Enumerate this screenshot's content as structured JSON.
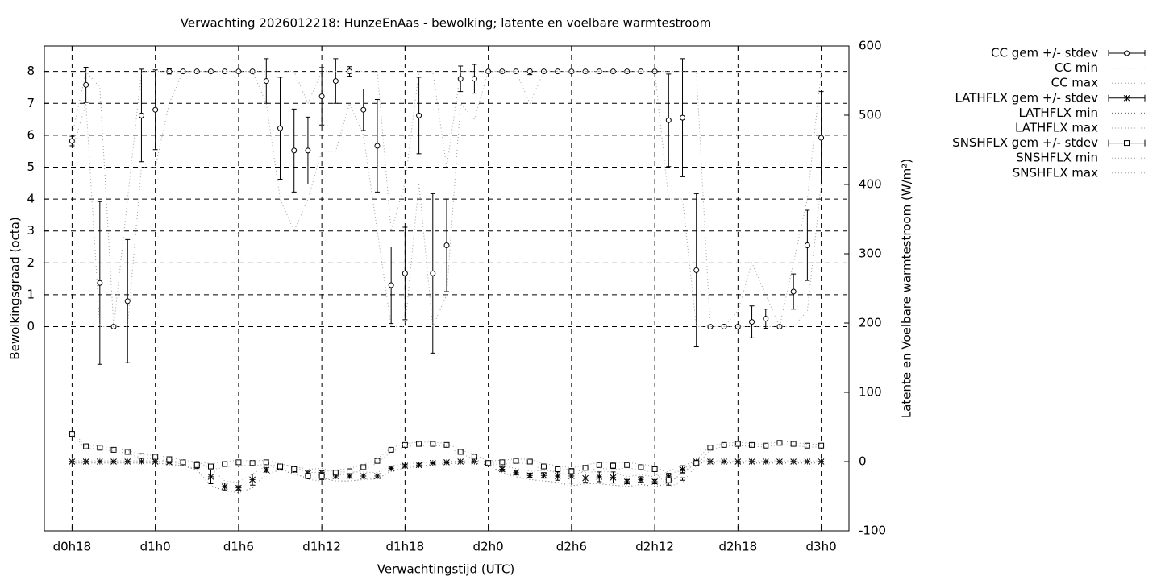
{
  "chart_data": {
    "type": "errorbar",
    "title": "Verwachting 2026012218: HunzeEnAas - bewolking; latente en voelbare warmtestroom",
    "xlabel": "Verwachtingstijd (UTC)",
    "ylabel": "Bewolkingsgraad (octa)",
    "y2label": "Latente en Voelbare warmtestroom (W/m²)",
    "grid": true,
    "legend": "outside-right",
    "x": [
      18,
      19,
      20,
      21,
      22,
      23,
      24,
      25,
      26,
      27,
      28,
      29,
      30,
      31,
      32,
      33,
      34,
      35,
      36,
      37,
      38,
      39,
      40,
      41,
      42,
      43,
      44,
      45,
      46,
      47,
      48,
      49,
      50,
      51,
      52,
      53,
      54,
      55,
      56,
      57,
      58,
      59,
      60,
      61,
      62,
      63,
      64,
      65,
      66,
      67,
      68,
      69,
      70,
      71,
      72
    ],
    "xlim": [
      16,
      74
    ],
    "xticks": [
      {
        "value": 18,
        "label": "d0h18"
      },
      {
        "value": 24,
        "label": "d1h0"
      },
      {
        "value": 30,
        "label": "d1h6"
      },
      {
        "value": 36,
        "label": "d1h12"
      },
      {
        "value": 42,
        "label": "d1h18"
      },
      {
        "value": 48,
        "label": "d2h0"
      },
      {
        "value": 54,
        "label": "d2h6"
      },
      {
        "value": 60,
        "label": "d2h12"
      },
      {
        "value": 66,
        "label": "d2h18"
      },
      {
        "value": 72,
        "label": "d3h0"
      }
    ],
    "ylim": [
      -6.4,
      8.8
    ],
    "yticks": [
      0,
      1,
      2,
      3,
      4,
      5,
      6,
      7,
      8
    ],
    "y2lim": [
      -100,
      600
    ],
    "y2ticks": [
      -100,
      0,
      100,
      200,
      300,
      400,
      500,
      600
    ],
    "series": [
      {
        "name": "CC gem +/- stdev",
        "style": "errorbar",
        "marker": "circle",
        "color": "#000000",
        "values": [
          5.82,
          7.58,
          1.37,
          0,
          0.8,
          6.62,
          6.8,
          8,
          8,
          8,
          8,
          8,
          8,
          8,
          7.7,
          6.22,
          5.52,
          5.52,
          7.22,
          7.7,
          8,
          6.8,
          5.67,
          1.3,
          1.67,
          6.62,
          1.67,
          2.55,
          7.77,
          7.77,
          8,
          8,
          8,
          8,
          8,
          8,
          8,
          8,
          8,
          8,
          8,
          8,
          8,
          6.47,
          6.55,
          1.77,
          0,
          0,
          0,
          0.15,
          0.25,
          0,
          1.1,
          2.55,
          5.92
        ],
        "errors": [
          0.15,
          0.55,
          2.55,
          0,
          1.93,
          1.45,
          1.25,
          0.08,
          0,
          0,
          0,
          0,
          0,
          0,
          0.7,
          1.6,
          1.3,
          1.05,
          0.9,
          0.7,
          0.15,
          0.65,
          1.45,
          1.2,
          1.45,
          1.2,
          2.5,
          1.45,
          0.4,
          0.45,
          0,
          0,
          0,
          0.1,
          0,
          0,
          0,
          0,
          0,
          0,
          0,
          0,
          0,
          1.45,
          1.85,
          2.4,
          0,
          0,
          0.05,
          0.5,
          0.3,
          0,
          0.55,
          1.1,
          1.45
        ]
      },
      {
        "name": "CC min",
        "style": "dotted",
        "color": "#a0a0a0",
        "values": [
          5.5,
          7,
          0,
          0,
          0,
          5,
          5,
          7,
          8,
          8,
          8,
          8,
          8,
          8,
          7,
          4,
          3,
          4,
          5.5,
          5.5,
          7,
          6,
          3,
          0,
          0,
          4.5,
          0,
          1,
          7,
          6.5,
          8,
          8,
          8,
          7,
          8,
          8,
          8,
          8,
          8,
          8,
          8,
          8,
          8,
          4,
          4,
          0,
          0,
          0,
          0,
          0,
          0,
          0,
          0,
          0.5,
          4.5
        ]
      },
      {
        "name": "CC max",
        "style": "dotted",
        "color": "#a0a0a0",
        "values": [
          6,
          8,
          7.5,
          0,
          4,
          8,
          8,
          8,
          8,
          8,
          8,
          8,
          8,
          8,
          8,
          8,
          8,
          7,
          8,
          8,
          8,
          8,
          8,
          3,
          4.5,
          8,
          8,
          5,
          8,
          8,
          8,
          8,
          8,
          8,
          8,
          8,
          8,
          8,
          8,
          8,
          8,
          8,
          8,
          8,
          8,
          8,
          0,
          0,
          0.5,
          2,
          1,
          0,
          2,
          4,
          8
        ]
      },
      {
        "name": "LATHFLX gem +/- stdev",
        "style": "errorbar",
        "marker": "star",
        "color": "#000000",
        "axis": "y2",
        "values": [
          0,
          0,
          0,
          0,
          0,
          0,
          0,
          -1,
          -2,
          -5,
          -22,
          -36,
          -38,
          -26,
          -12,
          -8,
          -12,
          -17,
          -16,
          -21,
          -21,
          -21,
          -21,
          -10,
          -6,
          -5,
          -2,
          -1,
          0,
          0,
          -2,
          -11,
          -16,
          -20,
          -20,
          -21,
          -21,
          -24,
          -22,
          -23,
          -29,
          -26,
          -29,
          -22,
          -11,
          0,
          0,
          0,
          0,
          0,
          0,
          0,
          0,
          0,
          0
        ],
        "errors": [
          0.5,
          0.5,
          0.5,
          0.5,
          0.5,
          0.5,
          0.5,
          1,
          2,
          3,
          10,
          5,
          3,
          8,
          3,
          3,
          3,
          3,
          3,
          3,
          3,
          3,
          3,
          2,
          2,
          2,
          1,
          1,
          0.5,
          0.5,
          1,
          3,
          3,
          3,
          4,
          6,
          10,
          6,
          7,
          8,
          3,
          4,
          3,
          5,
          5,
          0.5,
          0.5,
          0.5,
          0.5,
          0.5,
          0.5,
          0.5,
          0.5,
          0.5,
          0.5
        ]
      },
      {
        "name": "LATHFLX min",
        "style": "dotted",
        "color": "#606060",
        "axis": "y2",
        "values": [
          -2,
          -2,
          -2,
          -2,
          -2,
          -2,
          -2,
          -4,
          -6,
          -12,
          -35,
          -42,
          -45,
          -38,
          -18,
          -12,
          -18,
          -24,
          -24,
          -28,
          -28,
          -26,
          -25,
          -14,
          -9,
          -7,
          -4,
          -3,
          -2,
          -2,
          -5,
          -16,
          -22,
          -26,
          -28,
          -30,
          -35,
          -32,
          -32,
          -34,
          -36,
          -33,
          -36,
          -32,
          -16,
          -2,
          -2,
          -2,
          -2,
          -2,
          -2,
          -2,
          -2,
          -2,
          -2
        ]
      },
      {
        "name": "LATHFLX max",
        "style": "dotted",
        "color": "#a0a0a0",
        "axis": "y2",
        "values": [
          1,
          1,
          1,
          1,
          1,
          1,
          1,
          0,
          0,
          0,
          -10,
          -28,
          -30,
          -18,
          -6,
          -4,
          -7,
          -11,
          -10,
          -15,
          -15,
          -15,
          -16,
          -6,
          -3,
          -2,
          0,
          0,
          1,
          1,
          0,
          -6,
          -10,
          -14,
          -13,
          -13,
          -10,
          -16,
          -14,
          -15,
          -22,
          -19,
          -22,
          -14,
          -6,
          1,
          1,
          1,
          1,
          1,
          1,
          1,
          1,
          1,
          1
        ]
      },
      {
        "name": "SNSHFLX gem +/- stdev",
        "style": "errorbar",
        "marker": "square",
        "color": "#000000",
        "axis": "y2",
        "values": [
          40,
          22,
          20,
          17,
          14,
          8,
          7,
          3.5,
          -1,
          -5,
          -7,
          -3.5,
          -1,
          -2,
          -1,
          -7,
          -11,
          -21,
          -21,
          -16,
          -14,
          -8,
          1,
          17,
          24,
          25.5,
          25.5,
          24,
          14,
          7,
          -2,
          -1,
          1,
          0,
          -7,
          -11,
          -14,
          -9,
          -5,
          -6,
          -5,
          -8,
          -11,
          -27,
          -20,
          -2,
          20,
          24,
          25.5,
          24,
          23,
          27,
          25.5,
          23,
          23
        ],
        "errors": [
          1.5,
          1.5,
          1.5,
          1.5,
          1.5,
          2,
          2,
          2,
          2,
          5,
          3,
          2,
          2,
          2,
          2,
          3,
          3,
          4,
          5,
          3,
          3,
          3,
          2,
          2,
          1.5,
          1.5,
          1.5,
          1.5,
          2,
          2,
          2,
          2,
          2,
          2,
          3,
          3,
          4,
          3,
          2,
          4,
          3,
          3,
          3,
          7,
          7,
          2,
          1.5,
          1.5,
          1.5,
          1.5,
          1.5,
          1.5,
          1.5,
          1.5,
          1.5
        ]
      },
      {
        "name": "SNSHFLX min",
        "style": "dotted",
        "color": "#a0a0a0",
        "axis": "y2",
        "values": [
          38,
          20,
          18,
          15,
          12,
          5,
          4,
          0,
          -4,
          -12,
          -12,
          -8,
          -5,
          -6,
          -4,
          -12,
          -15,
          -26,
          -28,
          -20,
          -18,
          -12,
          -2,
          14,
          22,
          23,
          23,
          22,
          11,
          4,
          -5,
          -4,
          -2,
          -3,
          -12,
          -16,
          -20,
          -14,
          -9,
          -12,
          -9,
          -12,
          -16,
          -36,
          -30,
          -6,
          17,
          22,
          23,
          22,
          21,
          25,
          23,
          21,
          21
        ]
      },
      {
        "name": "SNSHFLX max",
        "style": "dotted",
        "color": "#a0a0a0",
        "axis": "y2",
        "values": [
          42,
          24,
          22,
          19,
          16,
          10,
          9,
          6,
          2,
          0,
          -3,
          0,
          2,
          1,
          2,
          -3,
          -7,
          -16,
          -15,
          -12,
          -10,
          -4,
          4,
          20,
          26,
          28,
          28,
          26,
          17,
          10,
          1,
          2,
          4,
          3,
          -3,
          -6,
          -9,
          -5,
          -1,
          -1,
          -1,
          -4,
          -6,
          -18,
          -12,
          2,
          23,
          26,
          28,
          26,
          25,
          29,
          28,
          25,
          25
        ]
      }
    ]
  }
}
